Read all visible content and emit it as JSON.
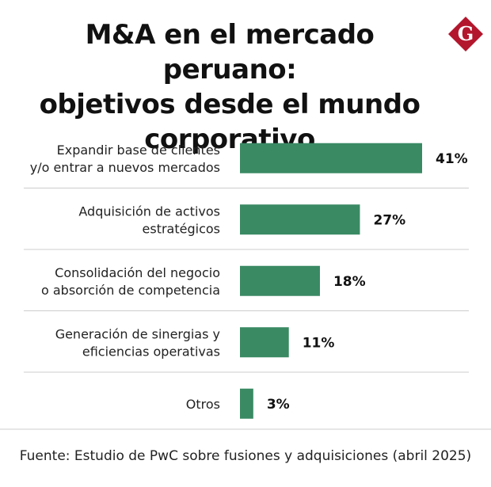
{
  "header": {
    "title_lines": [
      "M&A en el mercado peruano:",
      "objetivos desde el mundo",
      "corporativo"
    ],
    "logo_letter": "G"
  },
  "colors": {
    "bar": "#3a8a64",
    "logo": "#b3172d",
    "grid": "#cccccc",
    "text": "#111111"
  },
  "chart_data": {
    "type": "bar",
    "orientation": "horizontal",
    "title": "M&A en el mercado peruano: objetivos desde el mundo corporativo",
    "categories": [
      [
        "Expandir base de clientes",
        "y/o entrar a nuevos mercados"
      ],
      [
        "Adquisición de activos",
        "estratégicos"
      ],
      [
        "Consolidación del negocio",
        "o absorción de competencia"
      ],
      [
        "Generación de sinergias y",
        "eficiencias operativas"
      ],
      [
        "Otros"
      ]
    ],
    "values": [
      41,
      27,
      18,
      11,
      3
    ],
    "value_labels": [
      "41%",
      "27%",
      "18%",
      "11%",
      "3%"
    ],
    "unit": "%",
    "xlim": [
      0,
      41
    ]
  },
  "footer": {
    "source": "Fuente: Estudio de PwC sobre fusiones y adquisiciones (abril 2025)"
  }
}
